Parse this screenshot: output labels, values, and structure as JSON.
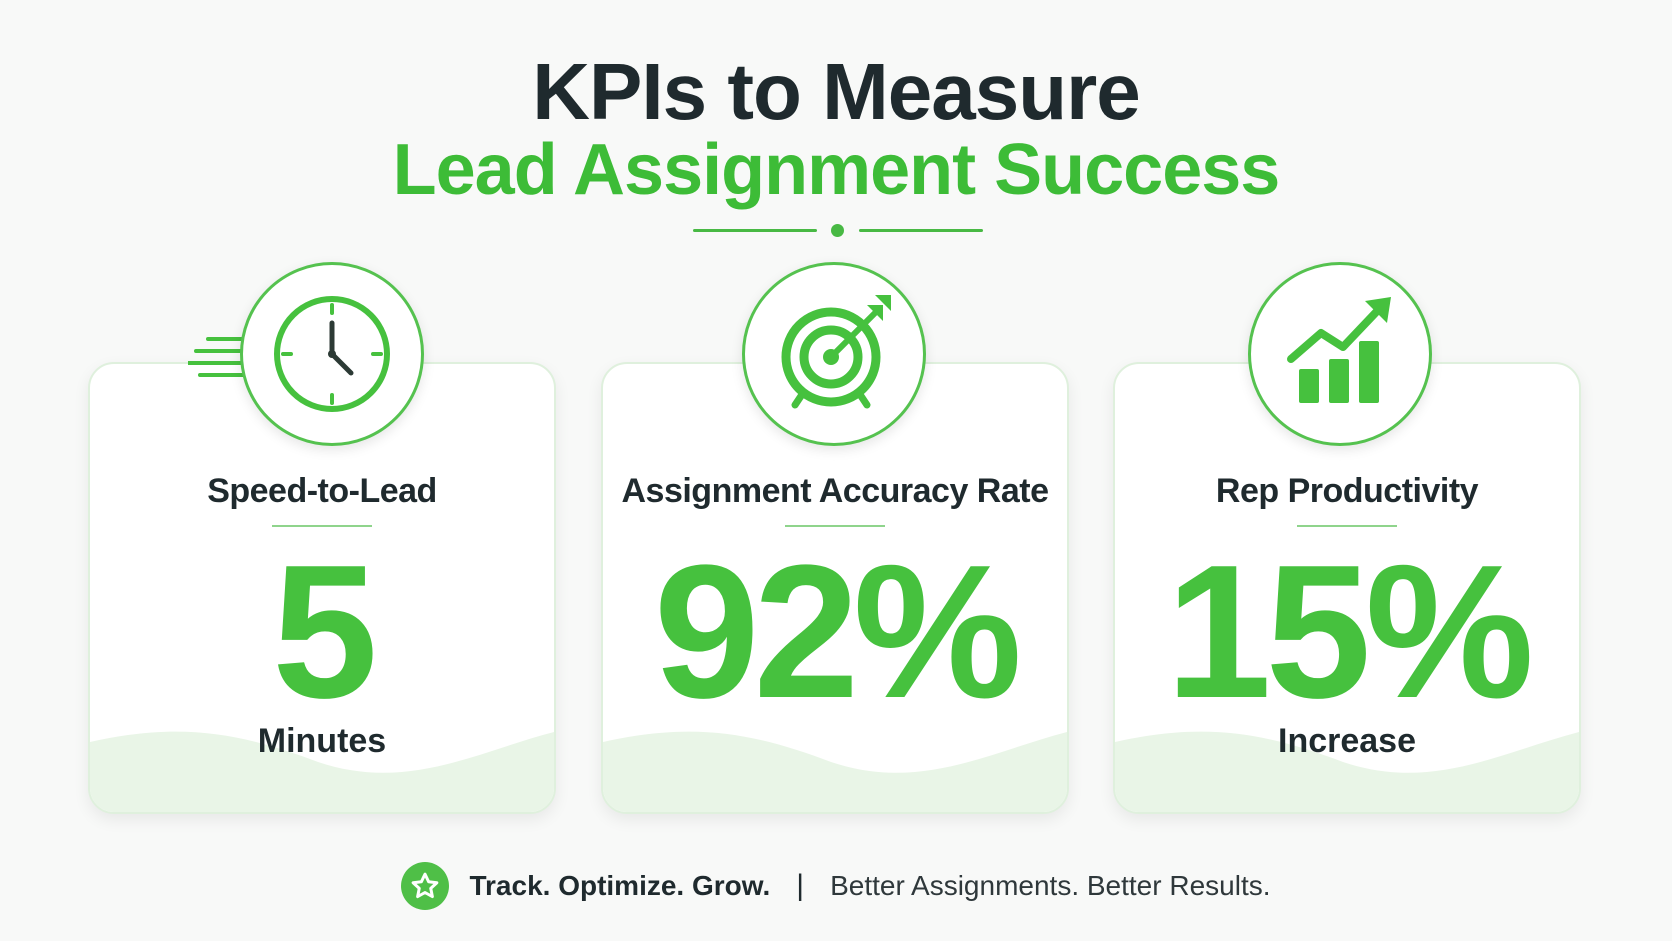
{
  "title": {
    "line1": "KPIs to Measure",
    "line2": "Lead Assignment Success"
  },
  "colors": {
    "accent": "#46c13e",
    "dark_text": "#1f2a2e",
    "background": "#f8f9f8"
  },
  "cards": [
    {
      "label": "Speed-to-Lead",
      "value": "5",
      "unit": "Minutes",
      "icon": "clock-icon"
    },
    {
      "label": "Assignment Accuracy Rate",
      "value": "92%",
      "unit": "",
      "icon": "target-icon"
    },
    {
      "label": "Rep Productivity",
      "value": "15%",
      "unit": "Increase",
      "icon": "growth-chart-icon"
    }
  ],
  "footer": {
    "icon": "star-icon",
    "track": "Track. Optimize. Grow.",
    "separator": "|",
    "tagline": "Better Assignments. Better Results."
  }
}
